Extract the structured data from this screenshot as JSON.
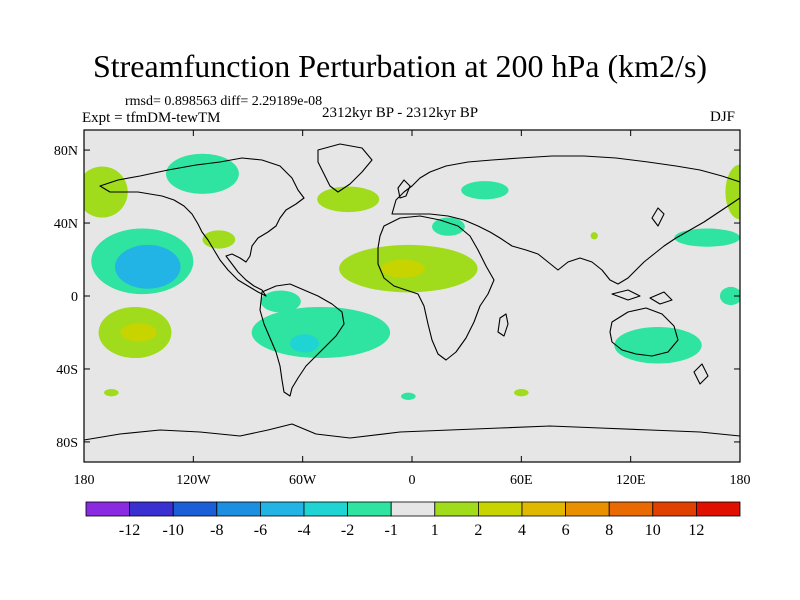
{
  "title": "Streamfunction Perturbation at 200 hPa (km2/s)",
  "stats_text": "rmsd= 0.898563 diff= 2.29189e-08",
  "experiment": "Expt = tfmDM-tewTM",
  "period": "2312kyr BP - 2312kyr BP",
  "season": "DJF",
  "colors": {
    "ocean_background": "#e6e6e6",
    "coastline": "#000000"
  },
  "latitude_ticks": [
    {
      "lat": 80,
      "label": "80N"
    },
    {
      "lat": 40,
      "label": "40N"
    },
    {
      "lat": 0,
      "label": "0"
    },
    {
      "lat": -40,
      "label": "40S"
    },
    {
      "lat": -80,
      "label": "80S"
    }
  ],
  "longitude_ticks": [
    {
      "lon": -180,
      "label": "180"
    },
    {
      "lon": -120,
      "label": "120W"
    },
    {
      "lon": -60,
      "label": "60W"
    },
    {
      "lon": 0,
      "label": "0"
    },
    {
      "lon": 60,
      "label": "60E"
    },
    {
      "lon": 120,
      "label": "120E"
    },
    {
      "lon": 180,
      "label": "180"
    }
  ],
  "colorbar": {
    "colors": [
      "#8a2be2",
      "#3a2fd1",
      "#1a5fd8",
      "#1c8fe0",
      "#22b4e4",
      "#20d4d4",
      "#2ee4a0",
      "#e6e6e6",
      "#a0dc1c",
      "#c8d400",
      "#e0b800",
      "#e89000",
      "#e86a00",
      "#e04000",
      "#e01000"
    ],
    "labels": [
      "-12",
      "-10",
      "-8",
      "-6",
      "-4",
      "-2",
      "-1",
      "1",
      "2",
      "4",
      "6",
      "8",
      "10",
      "12"
    ]
  },
  "anomaly_regions": [
    {
      "name": "north-pacific-east",
      "lon": -170,
      "lat": 57,
      "rx": 14,
      "ry": 14,
      "color": "#a0dc1c"
    },
    {
      "name": "north-america-north",
      "lon": -115,
      "lat": 67,
      "rx": 20,
      "ry": 11,
      "color": "#2ee4a0"
    },
    {
      "name": "north-atlantic-west",
      "lon": -35,
      "lat": 53,
      "rx": 17,
      "ry": 7,
      "color": "#a0dc1c"
    },
    {
      "name": "scandinavia-russia",
      "lon": 40,
      "lat": 58,
      "rx": 13,
      "ry": 5,
      "color": "#2ee4a0"
    },
    {
      "name": "northeast-asia-pacific",
      "lon": 180,
      "lat": 57,
      "rx": 8,
      "ry": 15,
      "color": "#a0dc1c"
    },
    {
      "name": "gulf-of-mexico",
      "lon": -106,
      "lat": 31,
      "rx": 9,
      "ry": 5,
      "color": "#a0dc1c"
    },
    {
      "name": "mediterranean",
      "lon": 20,
      "lat": 38,
      "rx": 9,
      "ry": 5,
      "color": "#2ee4a0"
    },
    {
      "name": "east-pacific-trough-outer",
      "lon": -148,
      "lat": 19,
      "rx": 28,
      "ry": 18,
      "color": "#2ee4a0"
    },
    {
      "name": "east-pacific-trough-inner",
      "lon": -145,
      "lat": 16,
      "rx": 18,
      "ry": 12,
      "color": "#22b4e4"
    },
    {
      "name": "saharan-ridge-outer",
      "lon": -2,
      "lat": 15,
      "rx": 38,
      "ry": 13,
      "color": "#a0dc1c"
    },
    {
      "name": "saharan-ridge-inner",
      "lon": -5,
      "lat": 15,
      "rx": 12,
      "ry": 5,
      "color": "#c8d400"
    },
    {
      "name": "south-america-trough",
      "lon": -50,
      "lat": -20,
      "rx": 38,
      "ry": 14,
      "color": "#2ee4a0"
    },
    {
      "name": "south-america-trough-core",
      "lon": -59,
      "lat": -26,
      "rx": 8,
      "ry": 5,
      "color": "#20d4d4"
    },
    {
      "name": "amazon-north",
      "lon": -72,
      "lat": -3,
      "rx": 11,
      "ry": 6,
      "color": "#2ee4a0"
    },
    {
      "name": "south-pacific-ridge-outer",
      "lon": -152,
      "lat": -20,
      "rx": 20,
      "ry": 14,
      "color": "#a0dc1c"
    },
    {
      "name": "south-pacific-ridge-inner",
      "lon": -150,
      "lat": -20,
      "rx": 10,
      "ry": 5,
      "color": "#c8d400"
    },
    {
      "name": "australia",
      "lon": 135,
      "lat": -27,
      "rx": 24,
      "ry": 10,
      "color": "#2ee4a0"
    },
    {
      "name": "north-pacific-west",
      "lon": 162,
      "lat": 32,
      "rx": 18,
      "ry": 5,
      "color": "#2ee4a0"
    },
    {
      "name": "western-pacific-tropics",
      "lon": 175,
      "lat": 0,
      "rx": 6,
      "ry": 5,
      "color": "#2ee4a0"
    },
    {
      "name": "south-pacific-small",
      "lon": -165,
      "lat": -53,
      "rx": 4,
      "ry": 2,
      "color": "#a0dc1c"
    },
    {
      "name": "south-atlantic-small",
      "lon": -2,
      "lat": -55,
      "rx": 4,
      "ry": 2,
      "color": "#2ee4a0"
    },
    {
      "name": "southern-indian-small",
      "lon": 60,
      "lat": -53,
      "rx": 4,
      "ry": 2,
      "color": "#a0dc1c"
    },
    {
      "name": "indian-small",
      "lon": 100,
      "lat": 33,
      "rx": 2,
      "ry": 2,
      "color": "#a0dc1c"
    }
  ]
}
